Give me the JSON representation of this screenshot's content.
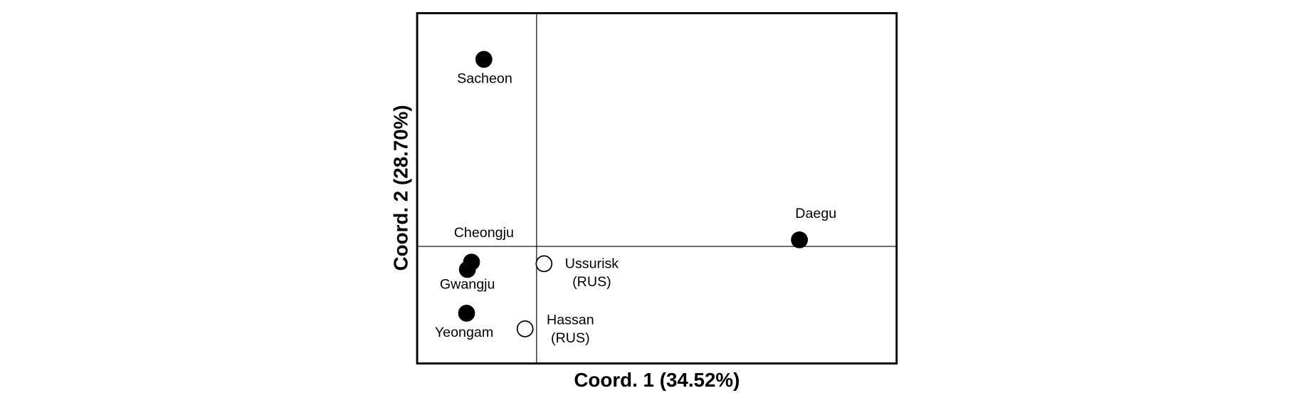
{
  "chart_data": {
    "type": "scatter",
    "x_label": "Coord. 1 (34.52%)",
    "y_label": "Coord. 2 (28.70%)",
    "xlim": [
      -1.45,
      4.37
    ],
    "ylim": [
      -1.42,
      2.83
    ],
    "series": [
      {
        "color": "#000000",
        "fill": "#000000",
        "x": [
          -0.64,
          -0.79,
          -0.84,
          -0.85,
          3.19
        ],
        "y": [
          2.27,
          -0.19,
          -0.28,
          -0.81,
          0.08
        ],
        "labels": [
          [
            "Sacheon"
          ],
          [
            "Cheongju"
          ],
          [
            "Gwangju"
          ],
          [
            "Yeongam"
          ],
          [
            "Daegu"
          ]
        ]
      },
      {
        "color": "#000000",
        "fill": "#ffffff",
        "x": [
          0.09,
          -0.14
        ],
        "y": [
          -0.21,
          -1.0
        ],
        "labels": [
          [
            "Ussurisk",
            "(RUS)"
          ],
          [
            "Hassan",
            "(RUS)"
          ]
        ]
      }
    ]
  }
}
